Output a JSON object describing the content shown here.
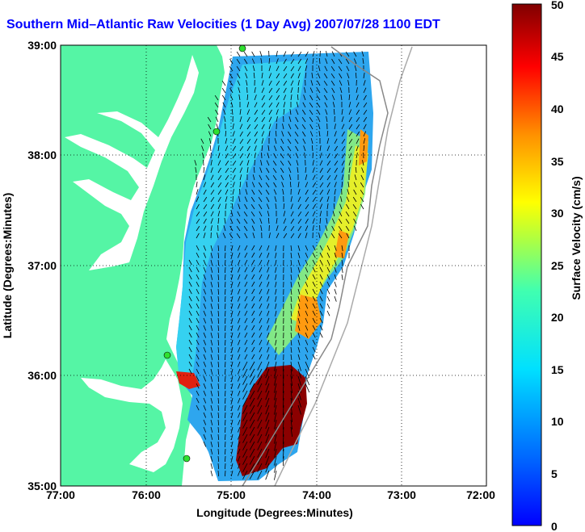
{
  "title": "Southern Mid–Atlantic Raw Velocities (1 Day Avg) 2007/07/28 1100 EDT",
  "map": {
    "xlabel": "Longitude (Degrees:Minutes)",
    "ylabel": "Latitude (Degrees:Minutes)",
    "x_ticks": [
      "77:00",
      "76:00",
      "75:00",
      "74:00",
      "73:00",
      "72:00"
    ],
    "y_ticks": [
      "39:00",
      "38:00",
      "37:00",
      "36:00",
      "35:00"
    ],
    "colors": {
      "land": "#55f5a5",
      "water": "#ffffff",
      "grid": "#000000"
    }
  },
  "colorbar": {
    "label": "Surface Velocity (cm/s)",
    "ticks": [
      "50",
      "45",
      "40",
      "35",
      "30",
      "25",
      "20",
      "15",
      "10",
      "5",
      "0"
    ],
    "colormap": "jet",
    "range": [
      0,
      50
    ]
  }
}
